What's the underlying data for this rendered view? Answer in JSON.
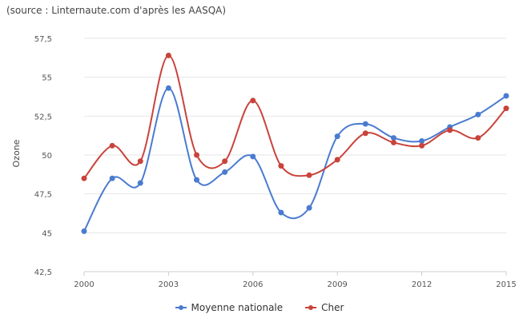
{
  "source_note": "(source : Linternaute.com d'après les AASQA)",
  "chart_data": {
    "type": "line",
    "x": [
      2000,
      2001,
      2002,
      2003,
      2004,
      2005,
      2006,
      2007,
      2008,
      2009,
      2010,
      2011,
      2012,
      2013,
      2014,
      2015
    ],
    "x_ticks": [
      "2000",
      "2003",
      "2006",
      "2009",
      "2012",
      "2015"
    ],
    "xlim": [
      2000,
      2015
    ],
    "ylabel": "Ozone",
    "ylim": [
      42.5,
      57.5
    ],
    "y_ticks": [
      "42,5",
      "45",
      "47,5",
      "50",
      "52,5",
      "55",
      "57,5"
    ],
    "grid": true,
    "legend_position": "bottom",
    "series": [
      {
        "name": "Moyenne nationale",
        "color": "#4a7bd0",
        "values": [
          45.1,
          48.5,
          48.2,
          54.3,
          48.4,
          48.9,
          49.9,
          46.3,
          46.6,
          51.2,
          52.0,
          51.1,
          50.9,
          51.8,
          52.6,
          53.8
        ]
      },
      {
        "name": "Cher",
        "color": "#c9433b",
        "values": [
          48.5,
          50.6,
          49.6,
          56.4,
          50.0,
          49.6,
          53.5,
          49.3,
          48.7,
          49.7,
          51.4,
          50.8,
          50.6,
          51.6,
          51.1,
          53.0
        ]
      }
    ]
  }
}
